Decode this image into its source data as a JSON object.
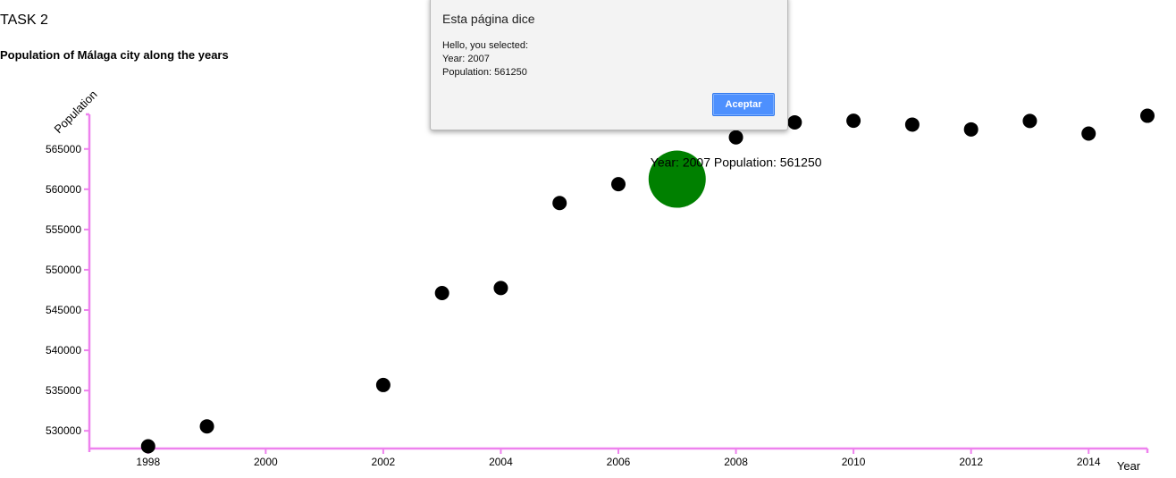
{
  "page": {
    "task_title": "TASK 2",
    "subtitle": "Population of Málaga city along the years"
  },
  "chart_data": {
    "type": "scatter",
    "xlabel": "Year",
    "ylabel": "Population",
    "xlim": [
      1997,
      2015
    ],
    "ylim": [
      527800,
      569300
    ],
    "x_ticks": [
      1998,
      2000,
      2002,
      2004,
      2006,
      2008,
      2010,
      2012,
      2014
    ],
    "y_ticks": [
      530000,
      535000,
      540000,
      545000,
      550000,
      555000,
      560000,
      565000
    ],
    "axis_color": "#ee82ee",
    "point_color": "#000000",
    "highlight_color": "#008000",
    "points": [
      {
        "x": 1998,
        "y": 528079
      },
      {
        "x": 1999,
        "y": 530553
      },
      {
        "x": 2002,
        "y": 535686
      },
      {
        "x": 2003,
        "y": 547105
      },
      {
        "x": 2004,
        "y": 547731
      },
      {
        "x": 2005,
        "y": 558287
      },
      {
        "x": 2006,
        "y": 560631
      },
      {
        "x": 2007,
        "y": 561250
      },
      {
        "x": 2008,
        "y": 566447
      },
      {
        "x": 2009,
        "y": 568305
      },
      {
        "x": 2010,
        "y": 568507
      },
      {
        "x": 2011,
        "y": 568030
      },
      {
        "x": 2012,
        "y": 567433
      },
      {
        "x": 2013,
        "y": 568479
      },
      {
        "x": 2014,
        "y": 566913
      },
      {
        "x": 2015,
        "y": 569130
      }
    ],
    "highlighted": {
      "x": 2007,
      "y": 561250
    },
    "tooltip": "Year: 2007 Population: 561250"
  },
  "dialog": {
    "title": "Esta página dice",
    "lines": [
      "Hello, you selected:",
      "Year: 2007",
      "Population: 561250"
    ],
    "ok_label": "Aceptar"
  }
}
